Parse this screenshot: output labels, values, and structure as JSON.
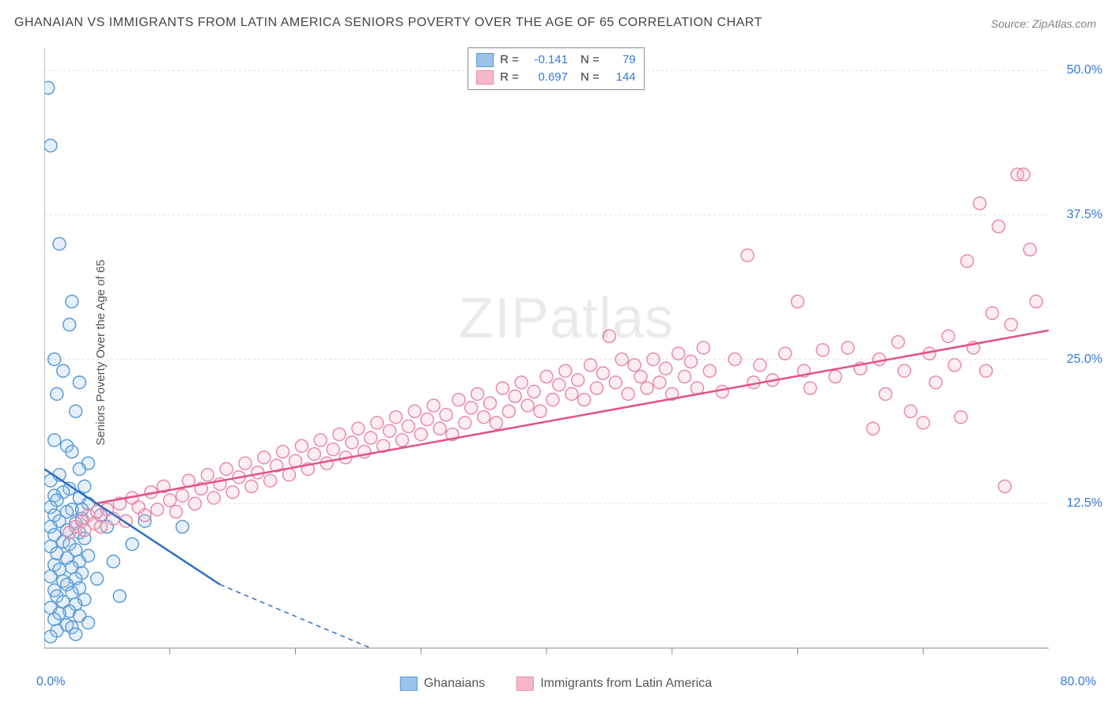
{
  "title": "GHANAIAN VS IMMIGRANTS FROM LATIN AMERICA SENIORS POVERTY OVER THE AGE OF 65 CORRELATION CHART",
  "source": "Source: ZipAtlas.com",
  "watermark": "ZIPatlas",
  "y_axis_label": "Seniors Poverty Over the Age of 65",
  "chart": {
    "type": "scatter",
    "background_color": "#ffffff",
    "grid_color": "#dddddd",
    "axis_line_color": "#888888",
    "xlim": [
      0,
      80
    ],
    "ylim": [
      0,
      52
    ],
    "x_ticks": [
      0,
      80
    ],
    "x_tick_labels": [
      "0.0%",
      "80.0%"
    ],
    "x_minor_ticks": [
      10,
      20,
      30,
      40,
      50,
      60,
      70
    ],
    "y_ticks": [
      12.5,
      25.0,
      37.5,
      50.0
    ],
    "y_tick_labels": [
      "12.5%",
      "25.0%",
      "37.5%",
      "50.0%"
    ],
    "marker_radius": 8,
    "marker_stroke_width": 1.5,
    "marker_fill_opacity": 0.25,
    "series": [
      {
        "name": "Ghanaians",
        "legend_label": "Ghanaians",
        "color_fill": "#9cc3ea",
        "color_stroke": "#5a9bd5",
        "line_color": "#2e6fc7",
        "r_value": "-0.141",
        "n_value": "79",
        "regression": {
          "x1": 0,
          "y1": 15.5,
          "x2": 14,
          "y2": 5.5,
          "dash_x2": 26,
          "dash_y2": 0
        },
        "points": [
          [
            0.3,
            48.5
          ],
          [
            0.5,
            43.5
          ],
          [
            1.2,
            35
          ],
          [
            2.2,
            30
          ],
          [
            2,
            28
          ],
          [
            0.8,
            25
          ],
          [
            1.5,
            24
          ],
          [
            2.8,
            23
          ],
          [
            1,
            22
          ],
          [
            2.5,
            20.5
          ],
          [
            0.8,
            18
          ],
          [
            1.8,
            17.5
          ],
          [
            2.2,
            17
          ],
          [
            3.5,
            16
          ],
          [
            2.8,
            15.5
          ],
          [
            1.2,
            15
          ],
          [
            0.5,
            14.5
          ],
          [
            3.2,
            14
          ],
          [
            2,
            13.8
          ],
          [
            1.5,
            13.5
          ],
          [
            0.8,
            13.2
          ],
          [
            2.8,
            13
          ],
          [
            1,
            12.8
          ],
          [
            3.5,
            12.5
          ],
          [
            0.5,
            12.2
          ],
          [
            2.2,
            12
          ],
          [
            1.8,
            11.8
          ],
          [
            0.8,
            11.5
          ],
          [
            3,
            11.2
          ],
          [
            1.2,
            11
          ],
          [
            2.5,
            10.8
          ],
          [
            0.5,
            10.5
          ],
          [
            1.8,
            10.2
          ],
          [
            2.8,
            10
          ],
          [
            0.8,
            9.8
          ],
          [
            3.2,
            9.5
          ],
          [
            1.5,
            9.2
          ],
          [
            2,
            9
          ],
          [
            0.5,
            8.8
          ],
          [
            2.5,
            8.5
          ],
          [
            1,
            8.2
          ],
          [
            3.5,
            8
          ],
          [
            1.8,
            7.8
          ],
          [
            2.8,
            7.5
          ],
          [
            0.8,
            7.2
          ],
          [
            2.2,
            7
          ],
          [
            1.2,
            6.8
          ],
          [
            3,
            6.5
          ],
          [
            0.5,
            6.2
          ],
          [
            2.5,
            6
          ],
          [
            1.5,
            5.8
          ],
          [
            1.8,
            5.5
          ],
          [
            2.8,
            5.2
          ],
          [
            0.8,
            5
          ],
          [
            2.2,
            4.8
          ],
          [
            1,
            4.5
          ],
          [
            3.2,
            4.2
          ],
          [
            1.5,
            4
          ],
          [
            2.5,
            3.8
          ],
          [
            0.5,
            3.5
          ],
          [
            2,
            3.2
          ],
          [
            1.2,
            3
          ],
          [
            2.8,
            2.8
          ],
          [
            0.8,
            2.5
          ],
          [
            3.5,
            2.2
          ],
          [
            1.8,
            2
          ],
          [
            2.2,
            1.8
          ],
          [
            1,
            1.5
          ],
          [
            2.5,
            1.2
          ],
          [
            0.5,
            1
          ],
          [
            3,
            12
          ],
          [
            4.5,
            11.5
          ],
          [
            5,
            10.5
          ],
          [
            4.2,
            6
          ],
          [
            5.5,
            7.5
          ],
          [
            6,
            4.5
          ],
          [
            7,
            9
          ],
          [
            8,
            11
          ],
          [
            11,
            10.5
          ]
        ]
      },
      {
        "name": "Immigrants from Latin America",
        "legend_label": "Immigrants from Latin America",
        "color_fill": "#f5b8c9",
        "color_stroke": "#e88aa8",
        "line_color": "#e5527f",
        "r_value": "0.697",
        "n_value": "144",
        "regression": {
          "x1": 4,
          "y1": 12.5,
          "x2": 80,
          "y2": 27.5
        },
        "points": [
          [
            2,
            10
          ],
          [
            2.5,
            10.5
          ],
          [
            3,
            11
          ],
          [
            3.2,
            10.2
          ],
          [
            3.5,
            11.5
          ],
          [
            4,
            10.8
          ],
          [
            4.2,
            11.8
          ],
          [
            4.5,
            10.5
          ],
          [
            5,
            12
          ],
          [
            5.5,
            11.2
          ],
          [
            6,
            12.5
          ],
          [
            6.5,
            11
          ],
          [
            7,
            13
          ],
          [
            7.5,
            12.2
          ],
          [
            8,
            11.5
          ],
          [
            8.5,
            13.5
          ],
          [
            9,
            12
          ],
          [
            9.5,
            14
          ],
          [
            10,
            12.8
          ],
          [
            10.5,
            11.8
          ],
          [
            11,
            13.2
          ],
          [
            11.5,
            14.5
          ],
          [
            12,
            12.5
          ],
          [
            12.5,
            13.8
          ],
          [
            13,
            15
          ],
          [
            13.5,
            13
          ],
          [
            14,
            14.2
          ],
          [
            14.5,
            15.5
          ],
          [
            15,
            13.5
          ],
          [
            15.5,
            14.8
          ],
          [
            16,
            16
          ],
          [
            16.5,
            14
          ],
          [
            17,
            15.2
          ],
          [
            17.5,
            16.5
          ],
          [
            18,
            14.5
          ],
          [
            18.5,
            15.8
          ],
          [
            19,
            17
          ],
          [
            19.5,
            15
          ],
          [
            20,
            16.2
          ],
          [
            20.5,
            17.5
          ],
          [
            21,
            15.5
          ],
          [
            21.5,
            16.8
          ],
          [
            22,
            18
          ],
          [
            22.5,
            16
          ],
          [
            23,
            17.2
          ],
          [
            23.5,
            18.5
          ],
          [
            24,
            16.5
          ],
          [
            24.5,
            17.8
          ],
          [
            25,
            19
          ],
          [
            25.5,
            17
          ],
          [
            26,
            18.2
          ],
          [
            26.5,
            19.5
          ],
          [
            27,
            17.5
          ],
          [
            27.5,
            18.8
          ],
          [
            28,
            20
          ],
          [
            28.5,
            18
          ],
          [
            29,
            19.2
          ],
          [
            29.5,
            20.5
          ],
          [
            30,
            18.5
          ],
          [
            30.5,
            19.8
          ],
          [
            31,
            21
          ],
          [
            31.5,
            19
          ],
          [
            32,
            20.2
          ],
          [
            32.5,
            18.5
          ],
          [
            33,
            21.5
          ],
          [
            33.5,
            19.5
          ],
          [
            34,
            20.8
          ],
          [
            34.5,
            22
          ],
          [
            35,
            20
          ],
          [
            35.5,
            21.2
          ],
          [
            36,
            19.5
          ],
          [
            36.5,
            22.5
          ],
          [
            37,
            20.5
          ],
          [
            37.5,
            21.8
          ],
          [
            38,
            23
          ],
          [
            38.5,
            21
          ],
          [
            39,
            22.2
          ],
          [
            39.5,
            20.5
          ],
          [
            40,
            23.5
          ],
          [
            40.5,
            21.5
          ],
          [
            41,
            22.8
          ],
          [
            41.5,
            24
          ],
          [
            42,
            22
          ],
          [
            42.5,
            23.2
          ],
          [
            43,
            21.5
          ],
          [
            43.5,
            24.5
          ],
          [
            44,
            22.5
          ],
          [
            44.5,
            23.8
          ],
          [
            45,
            27
          ],
          [
            45.5,
            23
          ],
          [
            46,
            25
          ],
          [
            46.5,
            22
          ],
          [
            47,
            24.5
          ],
          [
            47.5,
            23.5
          ],
          [
            48,
            22.5
          ],
          [
            48.5,
            25
          ],
          [
            49,
            23
          ],
          [
            49.5,
            24.2
          ],
          [
            50,
            22
          ],
          [
            50.5,
            25.5
          ],
          [
            51,
            23.5
          ],
          [
            51.5,
            24.8
          ],
          [
            52,
            22.5
          ],
          [
            52.5,
            26
          ],
          [
            53,
            24
          ],
          [
            54,
            22.2
          ],
          [
            55,
            25
          ],
          [
            56,
            34
          ],
          [
            56.5,
            23
          ],
          [
            57,
            24.5
          ],
          [
            58,
            23.2
          ],
          [
            59,
            25.5
          ],
          [
            60,
            30
          ],
          [
            60.5,
            24
          ],
          [
            61,
            22.5
          ],
          [
            62,
            25.8
          ],
          [
            63,
            23.5
          ],
          [
            64,
            26
          ],
          [
            65,
            24.2
          ],
          [
            66,
            19
          ],
          [
            66.5,
            25
          ],
          [
            67,
            22
          ],
          [
            68,
            26.5
          ],
          [
            68.5,
            24
          ],
          [
            69,
            20.5
          ],
          [
            70,
            19.5
          ],
          [
            70.5,
            25.5
          ],
          [
            71,
            23
          ],
          [
            72,
            27
          ],
          [
            72.5,
            24.5
          ],
          [
            73,
            20
          ],
          [
            73.5,
            33.5
          ],
          [
            74,
            26
          ],
          [
            74.5,
            38.5
          ],
          [
            75,
            24
          ],
          [
            75.5,
            29
          ],
          [
            76,
            36.5
          ],
          [
            76.5,
            14
          ],
          [
            77,
            28
          ],
          [
            77.5,
            41
          ],
          [
            78,
            41
          ],
          [
            78.5,
            34.5
          ],
          [
            79,
            30
          ]
        ]
      }
    ]
  },
  "colors": {
    "title": "#444444",
    "source": "#808080",
    "axis_label": "#555555",
    "tick_value": "#3878d8"
  }
}
